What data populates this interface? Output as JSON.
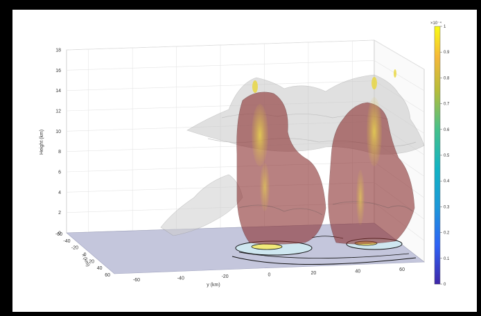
{
  "chart_data": {
    "type": "3d-surface",
    "zlabel": "Height (km)",
    "xlabel": "x (km)",
    "ylabel": "y (km)",
    "zticks": [
      "0",
      "2",
      "4",
      "6",
      "8",
      "10",
      "12",
      "14",
      "16",
      "18"
    ],
    "xticks": [
      "-60",
      "-40",
      "-20",
      "0",
      "20",
      "40",
      "60"
    ],
    "yticks": [
      "-60",
      "-40",
      "-20",
      "0",
      "20",
      "40",
      "60"
    ],
    "zlim": [
      0,
      18
    ],
    "xlim": [
      -60,
      60
    ],
    "ylim": [
      -70,
      70
    ],
    "grid": true,
    "colorbar": {
      "exponent": "×10⁻⁴",
      "ticks": [
        "0",
        "0.1",
        "0.2",
        "0.3",
        "0.4",
        "0.5",
        "0.6",
        "0.7",
        "0.8",
        "0.9",
        "1"
      ],
      "range": [
        0,
        1
      ]
    },
    "colors": {
      "cloud": "#c8c8c8",
      "updraft": "#8a2e2e",
      "core": "#e6d23c",
      "floor": "#c4c6dc"
    }
  }
}
